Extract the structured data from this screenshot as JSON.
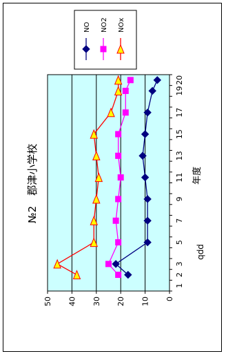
{
  "chart_data": {
    "type": "line",
    "title": "№2　郡津小学校",
    "xlabel": "年度",
    "ylabel": "ppb",
    "categories": [
      "1",
      "2",
      "3",
      "4",
      "5",
      "6",
      "7",
      "8",
      "9",
      "10",
      "11",
      "12",
      "13",
      "14",
      "15",
      "16",
      "17",
      "18",
      "19",
      "20"
    ],
    "x_tick_labels": [
      "1",
      "3",
      "5",
      "7",
      "9",
      "11",
      "13",
      "15",
      "17",
      "19"
    ],
    "x_tick_labels_right": [
      "2",
      "20"
    ],
    "ylim": [
      0,
      50
    ],
    "y_ticks": [
      0,
      10,
      20,
      30,
      40,
      50
    ],
    "grid": true,
    "plot_background": "#ccffff",
    "legend_position": "top-right",
    "series": [
      {
        "name": "NO",
        "color": "#000080",
        "marker": "diamond",
        "values": [
          null,
          17,
          22,
          null,
          9,
          null,
          9,
          null,
          9,
          null,
          10,
          null,
          11,
          null,
          10,
          null,
          9,
          null,
          7,
          5
        ]
      },
      {
        "name": "NO2",
        "color": "#ff00ff",
        "marker": "square",
        "values": [
          null,
          21,
          25,
          null,
          21,
          null,
          22,
          null,
          21,
          null,
          20,
          null,
          21,
          null,
          21,
          null,
          18,
          null,
          18,
          16
        ]
      },
      {
        "name": "NOx",
        "color": "#ff0000",
        "marker": "triangle",
        "marker_fill": "#ffff00",
        "values": [
          null,
          38,
          46,
          null,
          31,
          null,
          31,
          null,
          30,
          null,
          29,
          null,
          30,
          null,
          31,
          null,
          24,
          null,
          21,
          21
        ]
      }
    ]
  }
}
